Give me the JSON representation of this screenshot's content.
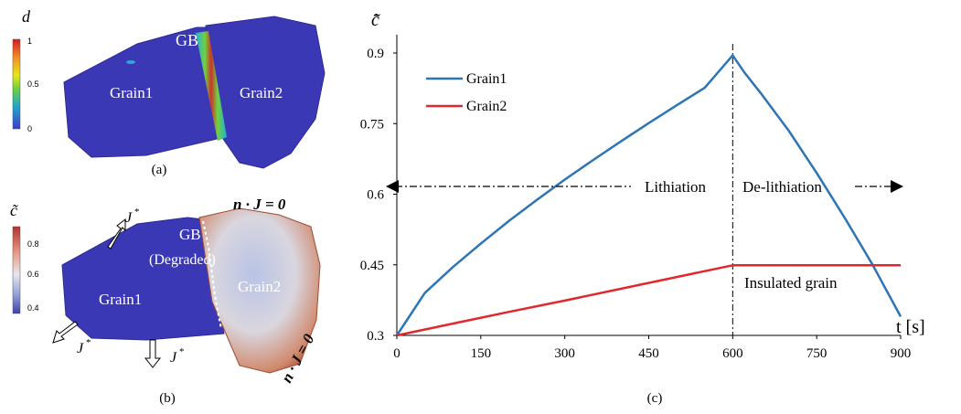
{
  "panel_a": {
    "colorbar_label": "d",
    "colorbar_ticks": [
      "1",
      "0.5",
      "0"
    ],
    "labels": {
      "gb": "GB",
      "grain1": "Grain1",
      "grain2": "Grain2"
    },
    "caption": "(a)"
  },
  "panel_b": {
    "colorbar_label": "c̃",
    "colorbar_ticks": [
      "0.8",
      "0.6",
      "0.4"
    ],
    "labels": {
      "gb": "GB",
      "gb_note": "(Degraded)",
      "grain1": "Grain1",
      "grain2": "Grain2",
      "flux1": "J",
      "flux2": "J",
      "flux3": "J",
      "flux_sup": "*",
      "bc_top": "n · J = 0",
      "bc_right": "n · J = 0"
    },
    "caption": "(b)"
  },
  "chart_data": {
    "type": "line",
    "ylabel": "c̄̃",
    "xlabel": "t [s]",
    "xlim": [
      0,
      900
    ],
    "ylim": [
      0.3,
      0.9
    ],
    "x_ticks": [
      0,
      150,
      300,
      450,
      600,
      750,
      900
    ],
    "y_ticks": [
      0.3,
      0.45,
      0.6,
      0.75,
      0.9
    ],
    "x_tick_labels": [
      "0",
      "150",
      "300",
      "450",
      "600",
      "750",
      "900"
    ],
    "y_tick_labels": [
      "0.3",
      "0.45",
      "0.6",
      "0.75",
      "0.9"
    ],
    "legend_position": "top-left",
    "series": [
      {
        "name": "Grain1",
        "color": "#2e75b6",
        "x": [
          0,
          50,
          100,
          150,
          200,
          250,
          300,
          350,
          400,
          450,
          500,
          550,
          600,
          620,
          650,
          700,
          750,
          800,
          850,
          900
        ],
        "y": [
          0.3,
          0.39,
          0.445,
          0.495,
          0.543,
          0.588,
          0.631,
          0.672,
          0.712,
          0.751,
          0.789,
          0.826,
          0.895,
          0.86,
          0.815,
          0.735,
          0.645,
          0.55,
          0.45,
          0.34
        ]
      },
      {
        "name": "Grain2",
        "color": "#e0292e",
        "x": [
          0,
          100,
          200,
          300,
          400,
          500,
          600,
          700,
          800,
          900
        ],
        "y": [
          0.3,
          0.325,
          0.35,
          0.374,
          0.399,
          0.424,
          0.449,
          0.449,
          0.449,
          0.449
        ]
      }
    ],
    "annotations": {
      "lithiation": "Lithiation",
      "delithiation": "De-lithiation",
      "insulated": "Insulated grain"
    },
    "vline_x": 600
  },
  "caption_c": "(c)"
}
